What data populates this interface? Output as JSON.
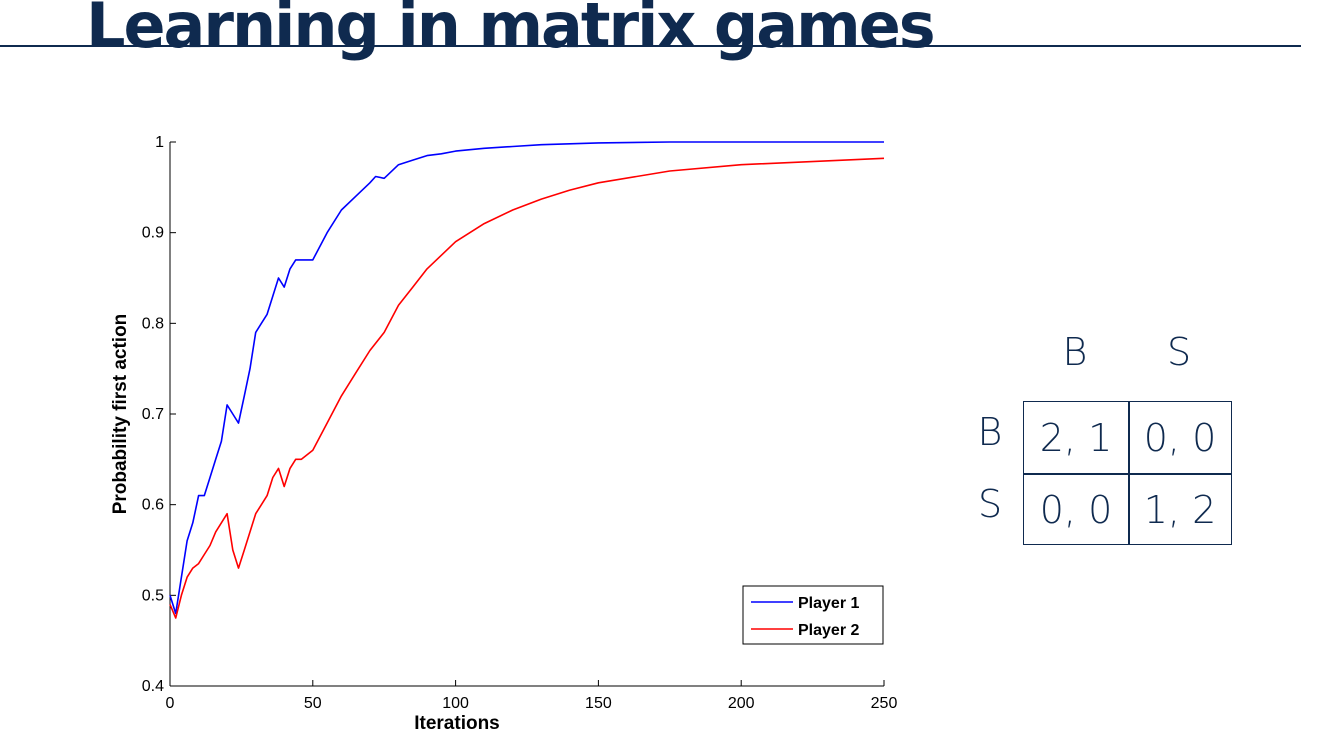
{
  "title": "Learning in matrix games",
  "chart_data": {
    "type": "line",
    "title": "",
    "xlabel": "Iterations",
    "ylabel": "Probability first action",
    "xlim": [
      0,
      250
    ],
    "ylim": [
      0.4,
      1.0
    ],
    "xticks": [
      0,
      50,
      100,
      150,
      200,
      250
    ],
    "yticks": [
      0.4,
      0.5,
      0.6,
      0.7,
      0.8,
      0.9,
      1
    ],
    "xtick_labels": [
      "0",
      "50",
      "100",
      "150",
      "200",
      "250"
    ],
    "ytick_labels": [
      "0.4",
      "0.5",
      "0.6",
      "0.7",
      "0.8",
      "0.9",
      "1"
    ],
    "grid": false,
    "legend_position": "lower-right",
    "series": [
      {
        "name": "Player 1",
        "color": "#0000ff",
        "x": [
          0,
          2,
          4,
          6,
          8,
          10,
          12,
          14,
          16,
          18,
          20,
          22,
          24,
          26,
          28,
          30,
          32,
          34,
          36,
          38,
          40,
          42,
          44,
          46,
          48,
          50,
          55,
          60,
          65,
          70,
          72,
          75,
          80,
          85,
          90,
          95,
          100,
          110,
          120,
          130,
          140,
          150,
          175,
          200,
          250
        ],
        "y": [
          0.5,
          0.48,
          0.52,
          0.56,
          0.58,
          0.61,
          0.61,
          0.63,
          0.65,
          0.67,
          0.71,
          0.7,
          0.69,
          0.72,
          0.75,
          0.79,
          0.8,
          0.81,
          0.83,
          0.85,
          0.84,
          0.86,
          0.87,
          0.87,
          0.87,
          0.87,
          0.9,
          0.925,
          0.94,
          0.955,
          0.962,
          0.96,
          0.975,
          0.98,
          0.985,
          0.987,
          0.99,
          0.993,
          0.995,
          0.997,
          0.998,
          0.999,
          1.0,
          1.0,
          1.0
        ]
      },
      {
        "name": "Player 2",
        "color": "#ff0000",
        "x": [
          0,
          2,
          4,
          6,
          8,
          10,
          12,
          14,
          16,
          18,
          20,
          22,
          24,
          26,
          28,
          30,
          32,
          34,
          36,
          38,
          40,
          42,
          44,
          46,
          48,
          50,
          55,
          60,
          65,
          70,
          75,
          80,
          85,
          90,
          95,
          100,
          110,
          120,
          130,
          140,
          150,
          175,
          200,
          250
        ],
        "y": [
          0.49,
          0.475,
          0.5,
          0.52,
          0.53,
          0.535,
          0.545,
          0.555,
          0.57,
          0.58,
          0.59,
          0.55,
          0.53,
          0.55,
          0.57,
          0.59,
          0.6,
          0.61,
          0.63,
          0.64,
          0.62,
          0.64,
          0.65,
          0.65,
          0.655,
          0.66,
          0.69,
          0.72,
          0.745,
          0.77,
          0.79,
          0.82,
          0.84,
          0.86,
          0.875,
          0.89,
          0.91,
          0.925,
          0.937,
          0.947,
          0.955,
          0.968,
          0.975,
          0.982
        ]
      }
    ]
  },
  "payoff_matrix": {
    "col_labels": [
      "B",
      "S"
    ],
    "row_labels": [
      "B",
      "S"
    ],
    "cells": [
      [
        "2, 1",
        "0, 0"
      ],
      [
        "0, 0",
        "1, 2"
      ]
    ]
  }
}
